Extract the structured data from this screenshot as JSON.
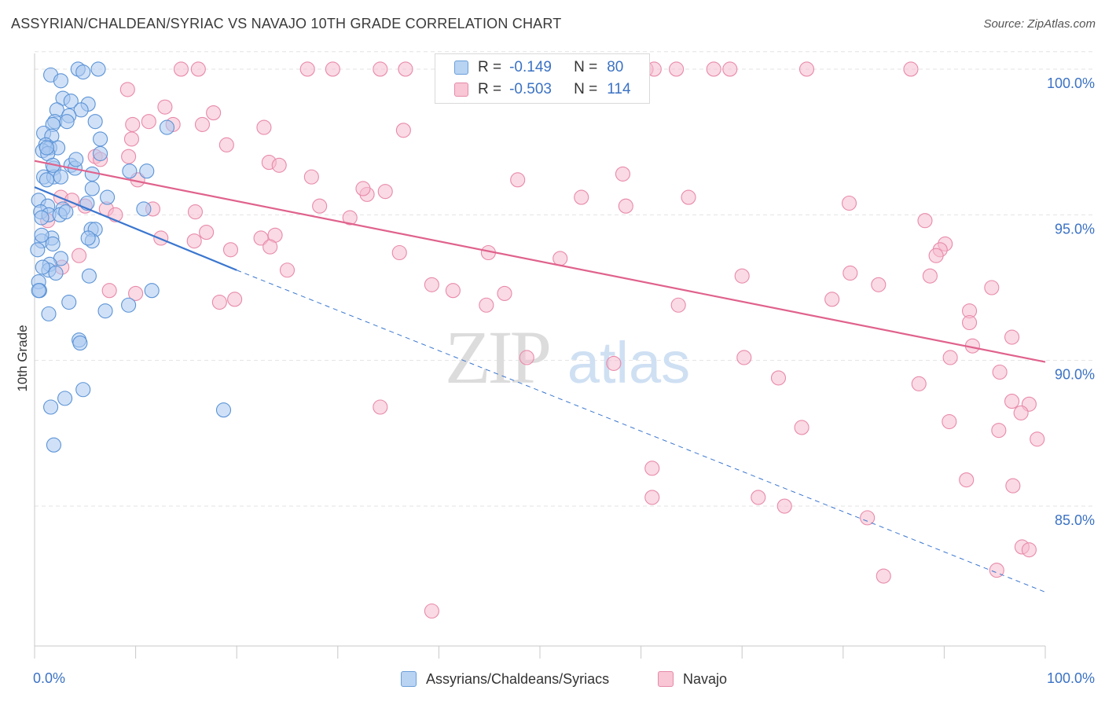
{
  "title": "ASSYRIAN/CHALDEAN/SYRIAC VS NAVAJO 10TH GRADE CORRELATION CHART",
  "source": "Source: ZipAtlas.com",
  "watermark": {
    "zip": "ZIP",
    "atlas": "atlas"
  },
  "legend": {
    "r_label": "R =",
    "n_label": "N =",
    "series1": {
      "r": "-0.149",
      "n": "80"
    },
    "series2": {
      "r": "-0.503",
      "n": "114"
    }
  },
  "bottom_legend": {
    "series1": "Assyrians/Chaldeans/Syriacs",
    "series2": "Navajo"
  },
  "colors": {
    "blue_fill": "#a9c9f0",
    "blue_stroke": "#5b93d6",
    "blue_line": "#3a76cf",
    "pink_fill": "#f6bccd",
    "pink_stroke": "#e88aaa",
    "pink_line": "#e0628c",
    "tick_text": "#3b72c4",
    "grid": "#e3e3e3"
  },
  "chart_data": {
    "type": "scatter",
    "title": "ASSYRIAN/CHALDEAN/SYRIAC VS NAVAJO 10TH GRADE CORRELATION CHART",
    "xlabel": "",
    "ylabel": "10th Grade",
    "xlim": [
      0,
      100
    ],
    "ylim": [
      80.2,
      100.7
    ],
    "x_tick_labels": [
      "0.0%",
      "100.0%"
    ],
    "y_ticks": [
      85,
      90,
      95,
      100
    ],
    "y_tick_labels": [
      "85.0%",
      "90.0%",
      "95.0%",
      "100.0%"
    ],
    "grid": true,
    "legend_position": "top-center",
    "series": [
      {
        "name": "Assyrians/Chaldeans/Syriacs",
        "r": -0.149,
        "n": 80,
        "trend": {
          "x": [
            0,
            20
          ],
          "y": [
            95.95,
            93.1
          ]
        },
        "trend_extension": {
          "x": [
            20,
            100
          ],
          "y": [
            93.1,
            82.05
          ]
        },
        "points": [
          [
            4.3,
            100
          ],
          [
            6.3,
            100
          ],
          [
            4.8,
            99.9
          ],
          [
            1.6,
            99.8
          ],
          [
            2.6,
            99.6
          ],
          [
            2.8,
            99.0
          ],
          [
            3.6,
            98.9
          ],
          [
            5.3,
            98.8
          ],
          [
            2.2,
            98.6
          ],
          [
            4.6,
            98.6
          ],
          [
            3.4,
            98.4
          ],
          [
            2.0,
            98.2
          ],
          [
            6.0,
            98.2
          ],
          [
            3.2,
            98.2
          ],
          [
            1.8,
            98.1
          ],
          [
            13.1,
            98.0
          ],
          [
            0.9,
            97.8
          ],
          [
            1.7,
            97.7
          ],
          [
            6.5,
            97.6
          ],
          [
            1.1,
            97.4
          ],
          [
            1.5,
            97.3
          ],
          [
            2.3,
            97.3
          ],
          [
            0.8,
            97.2
          ],
          [
            6.5,
            97.1
          ],
          [
            1.3,
            97.1
          ],
          [
            3.6,
            96.7
          ],
          [
            4.0,
            96.6
          ],
          [
            1.9,
            96.6
          ],
          [
            11.1,
            96.5
          ],
          [
            9.4,
            96.5
          ],
          [
            5.7,
            96.4
          ],
          [
            0.9,
            96.3
          ],
          [
            1.9,
            96.3
          ],
          [
            1.2,
            96.2
          ],
          [
            5.7,
            95.9
          ],
          [
            0.4,
            95.5
          ],
          [
            7.2,
            95.6
          ],
          [
            1.3,
            95.3
          ],
          [
            2.8,
            95.2
          ],
          [
            0.6,
            95.1
          ],
          [
            10.8,
            95.2
          ],
          [
            1.4,
            95.0
          ],
          [
            2.5,
            95.0
          ],
          [
            0.7,
            94.9
          ],
          [
            5.6,
            94.5
          ],
          [
            6.0,
            94.5
          ],
          [
            1.7,
            94.2
          ],
          [
            0.7,
            94.1
          ],
          [
            5.7,
            94.1
          ],
          [
            5.3,
            94.2
          ],
          [
            1.8,
            94.0
          ],
          [
            0.3,
            93.8
          ],
          [
            2.6,
            93.5
          ],
          [
            1.5,
            93.3
          ],
          [
            1.4,
            93.1
          ],
          [
            0.8,
            93.2
          ],
          [
            5.4,
            92.9
          ],
          [
            0.4,
            92.7
          ],
          [
            0.5,
            92.4
          ],
          [
            0.4,
            92.4
          ],
          [
            11.6,
            92.4
          ],
          [
            3.4,
            92.0
          ],
          [
            9.3,
            91.9
          ],
          [
            7.0,
            91.7
          ],
          [
            1.4,
            91.6
          ],
          [
            4.4,
            90.7
          ],
          [
            4.5,
            90.6
          ],
          [
            4.8,
            89.0
          ],
          [
            3.0,
            88.7
          ],
          [
            1.6,
            88.4
          ],
          [
            18.7,
            88.3
          ],
          [
            1.9,
            87.1
          ],
          [
            1.8,
            96.7
          ],
          [
            0.7,
            94.3
          ],
          [
            1.2,
            97.3
          ],
          [
            2.6,
            96.3
          ],
          [
            4.1,
            96.9
          ],
          [
            3.1,
            95.1
          ],
          [
            5.2,
            95.4
          ],
          [
            2.1,
            93.0
          ]
        ]
      },
      {
        "name": "Navajo",
        "r": -0.503,
        "n": 114,
        "trend": {
          "x": [
            0,
            100
          ],
          "y": [
            96.85,
            89.95
          ]
        },
        "points": [
          [
            14.5,
            100
          ],
          [
            16.2,
            100
          ],
          [
            27.0,
            100
          ],
          [
            29.5,
            100
          ],
          [
            34.2,
            100
          ],
          [
            36.7,
            100
          ],
          [
            48.6,
            100
          ],
          [
            60.5,
            100
          ],
          [
            61.3,
            100
          ],
          [
            63.5,
            100
          ],
          [
            67.2,
            100
          ],
          [
            68.8,
            100
          ],
          [
            76.4,
            100
          ],
          [
            86.7,
            100
          ],
          [
            9.2,
            99.3
          ],
          [
            12.9,
            98.7
          ],
          [
            17.7,
            98.5
          ],
          [
            11.3,
            98.2
          ],
          [
            13.7,
            98.1
          ],
          [
            9.7,
            98.1
          ],
          [
            16.6,
            98.1
          ],
          [
            22.7,
            98.0
          ],
          [
            36.5,
            97.9
          ],
          [
            19.0,
            97.4
          ],
          [
            6.0,
            97.0
          ],
          [
            9.3,
            97.0
          ],
          [
            23.2,
            96.8
          ],
          [
            24.2,
            96.7
          ],
          [
            58.2,
            96.4
          ],
          [
            27.4,
            96.3
          ],
          [
            10.2,
            96.2
          ],
          [
            34.7,
            95.8
          ],
          [
            32.9,
            95.7
          ],
          [
            2.6,
            95.6
          ],
          [
            54.1,
            95.6
          ],
          [
            64.7,
            95.6
          ],
          [
            80.6,
            95.4
          ],
          [
            5.0,
            95.3
          ],
          [
            28.2,
            95.3
          ],
          [
            58.5,
            95.3
          ],
          [
            7.1,
            95.2
          ],
          [
            11.7,
            95.2
          ],
          [
            15.9,
            95.1
          ],
          [
            8.0,
            95.0
          ],
          [
            31.2,
            94.9
          ],
          [
            88.1,
            94.8
          ],
          [
            1.3,
            94.8
          ],
          [
            23.8,
            94.3
          ],
          [
            12.5,
            94.2
          ],
          [
            22.4,
            94.2
          ],
          [
            90.1,
            94.0
          ],
          [
            15.8,
            94.1
          ],
          [
            89.6,
            93.8
          ],
          [
            19.4,
            93.8
          ],
          [
            36.1,
            93.7
          ],
          [
            23.3,
            93.9
          ],
          [
            44.9,
            93.7
          ],
          [
            89.2,
            93.6
          ],
          [
            4.4,
            93.6
          ],
          [
            2.7,
            93.2
          ],
          [
            25.0,
            93.1
          ],
          [
            80.7,
            93.0
          ],
          [
            70.0,
            92.9
          ],
          [
            83.5,
            92.6
          ],
          [
            88.6,
            92.9
          ],
          [
            39.3,
            92.6
          ],
          [
            7.4,
            92.4
          ],
          [
            41.4,
            92.4
          ],
          [
            46.5,
            92.3
          ],
          [
            94.7,
            92.5
          ],
          [
            78.9,
            92.1
          ],
          [
            19.8,
            92.1
          ],
          [
            92.5,
            91.7
          ],
          [
            18.3,
            92.0
          ],
          [
            44.7,
            91.9
          ],
          [
            63.7,
            91.9
          ],
          [
            92.5,
            91.3
          ],
          [
            96.7,
            90.8
          ],
          [
            92.8,
            90.5
          ],
          [
            90.6,
            90.1
          ],
          [
            70.2,
            90.1
          ],
          [
            48.7,
            90.1
          ],
          [
            57.3,
            89.9
          ],
          [
            95.5,
            89.6
          ],
          [
            73.6,
            89.4
          ],
          [
            87.5,
            89.2
          ],
          [
            34.2,
            88.4
          ],
          [
            96.7,
            88.6
          ],
          [
            98.4,
            88.5
          ],
          [
            97.6,
            88.2
          ],
          [
            90.5,
            87.9
          ],
          [
            75.9,
            87.7
          ],
          [
            95.4,
            87.6
          ],
          [
            99.2,
            87.3
          ],
          [
            61.1,
            86.3
          ],
          [
            92.2,
            85.9
          ],
          [
            96.8,
            85.7
          ],
          [
            61.1,
            85.3
          ],
          [
            71.6,
            85.3
          ],
          [
            74.2,
            85.0
          ],
          [
            82.4,
            84.6
          ],
          [
            97.7,
            83.6
          ],
          [
            98.4,
            83.5
          ],
          [
            95.2,
            82.8
          ],
          [
            84.0,
            82.6
          ],
          [
            39.3,
            81.4
          ],
          [
            6.5,
            96.9
          ],
          [
            3.7,
            95.5
          ],
          [
            10.0,
            92.3
          ],
          [
            17.0,
            94.4
          ],
          [
            32.5,
            95.9
          ],
          [
            47.8,
            96.2
          ],
          [
            52.0,
            93.5
          ],
          [
            9.6,
            97.6
          ]
        ]
      }
    ]
  }
}
